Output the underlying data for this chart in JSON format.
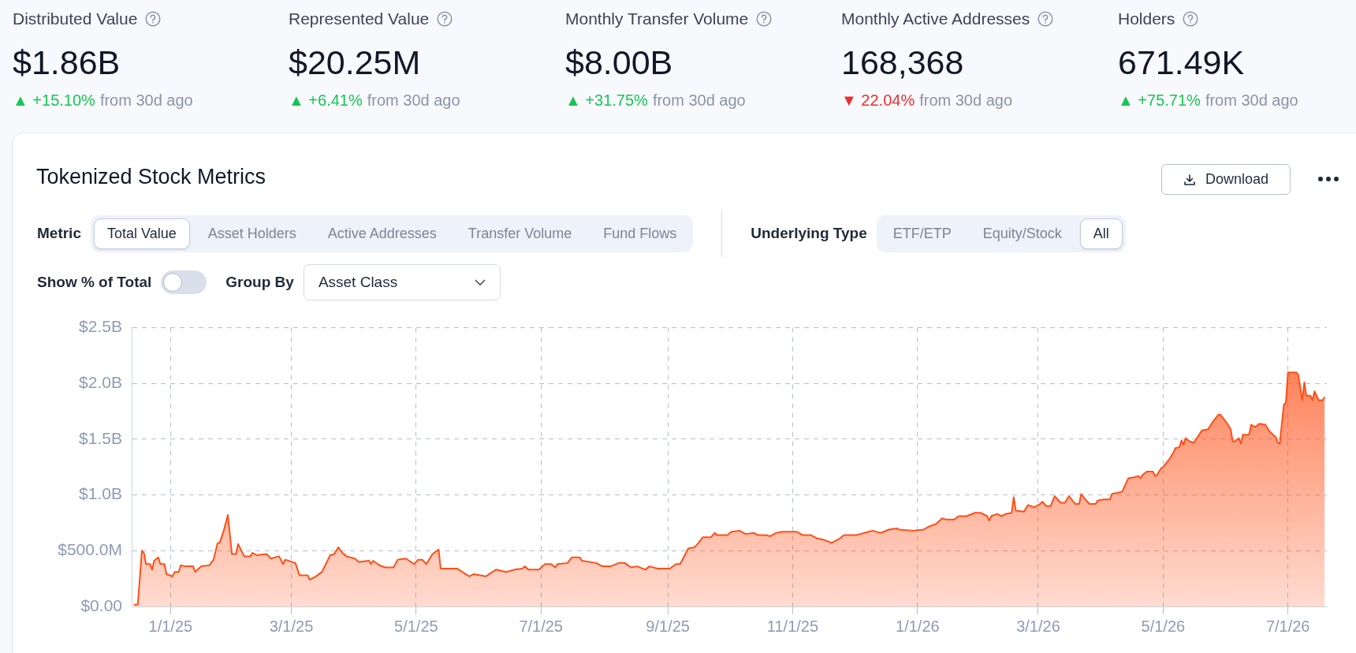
{
  "chart_data": [
    {
      "type": "other",
      "annotations": [
        "Distributed Value",
        "$1.86B",
        "▲ +15.10%",
        "from 30d ago",
        "Represented Value",
        "$20.25M",
        "▲ +6.41%",
        "from 30d ago",
        "Monthly Transfer Volume",
        "$8.00B",
        "▲ +31.75%",
        "from 30d ago",
        "Monthly Active Addresses",
        "168,368",
        "▼ 22.04%",
        "from 30d ago",
        "Holders",
        "671.49K",
        "▲ +75.71%",
        "from 30d ago"
      ],
      "colors": [
        "#16c653",
        "#16c653",
        "#16c653",
        "#f02d2d",
        "#16c653"
      ]
    },
    {
      "type": "area",
      "title": "Tokenized Stock Metrics",
      "annotations": [
        "Download",
        "Metric",
        "Total Value",
        "Asset Holders",
        "Active Addresses",
        "Transfer Volume",
        "Fund Flows",
        "Underlying Type",
        "ETF/ETP",
        "Equity/Stock",
        "All",
        "Show % of Total",
        "Group By",
        "Asset Class"
      ],
      "color": "#ff4f17",
      "grid": true,
      "xlim": [
        "2024-12-13",
        "2026-07-20"
      ],
      "ylim": [
        0,
        2500000000.0
      ],
      "xticks": [
        {
          "value": "2025-01-01",
          "label": "1/1/25"
        },
        {
          "value": "2025-03-01",
          "label": "3/1/25"
        },
        {
          "value": "2025-05-01",
          "label": "5/1/25"
        },
        {
          "value": "2025-07-01",
          "label": "7/1/25"
        },
        {
          "value": "2025-09-01",
          "label": "9/1/25"
        },
        {
          "value": "2025-11-01",
          "label": "11/1/25"
        },
        {
          "value": "2026-01-01",
          "label": "1/1/26"
        },
        {
          "value": "2026-03-01",
          "label": "3/1/26"
        },
        {
          "value": "2026-05-01",
          "label": "5/1/26"
        },
        {
          "value": "2026-07-01",
          "label": "7/1/26"
        }
      ],
      "yticks": [
        {
          "value": 0,
          "label": "$0.00"
        },
        {
          "value": 500000000.0,
          "label": "$500.0M"
        },
        {
          "value": 1000000000.0,
          "label": "$1.0B"
        },
        {
          "value": 1500000000.0,
          "label": "$1.5B"
        },
        {
          "value": 2000000000.0,
          "label": "$2.0B"
        },
        {
          "value": 2500000000.0,
          "label": "$2.5B"
        }
      ],
      "x": [
        "2024-12-14",
        "2024-12-16",
        "2024-12-18",
        "2024-12-19",
        "2024-12-20",
        "2024-12-22",
        "2024-12-23",
        "2024-12-24",
        "2024-12-26",
        "2024-12-27",
        "2024-12-29",
        "2024-12-30",
        "2025-01-02",
        "2025-01-03",
        "2025-01-05",
        "2025-01-06",
        "2025-01-08",
        "2025-01-12",
        "2025-01-13",
        "2025-01-16",
        "2025-01-20",
        "2025-01-22",
        "2025-01-24",
        "2025-01-25",
        "2025-01-27",
        "2025-01-29",
        "2025-01-31",
        "2025-02-02",
        "2025-02-03",
        "2025-02-06",
        "2025-02-09",
        "2025-02-10",
        "2025-02-12",
        "2025-02-17",
        "2025-02-19",
        "2025-02-23",
        "2025-02-25",
        "2025-02-26",
        "2025-03-03",
        "2025-03-05",
        "2025-03-09",
        "2025-03-10",
        "2025-03-13",
        "2025-03-16",
        "2025-03-20",
        "2025-03-22",
        "2025-03-24",
        "2025-03-26",
        "2025-03-28",
        "2025-04-01",
        "2025-04-03",
        "2025-04-08",
        "2025-04-09",
        "2025-04-10",
        "2025-04-13",
        "2025-04-16",
        "2025-04-20",
        "2025-04-22",
        "2025-04-26",
        "2025-04-30",
        "2025-05-02",
        "2025-05-04",
        "2025-05-06",
        "2025-05-09",
        "2025-05-12",
        "2025-05-13",
        "2025-05-17",
        "2025-05-21",
        "2025-05-27",
        "2025-05-29",
        "2025-06-04",
        "2025-06-09",
        "2025-06-14",
        "2025-06-18",
        "2025-06-22",
        "2025-06-23",
        "2025-06-25",
        "2025-06-30",
        "2025-07-03",
        "2025-07-06",
        "2025-07-08",
        "2025-07-09",
        "2025-07-14",
        "2025-07-16",
        "2025-07-20",
        "2025-07-21",
        "2025-07-28",
        "2025-07-31",
        "2025-08-04",
        "2025-08-08",
        "2025-08-11",
        "2025-08-14",
        "2025-08-17",
        "2025-08-21",
        "2025-08-23",
        "2025-08-27",
        "2025-09-02",
        "2025-09-05",
        "2025-09-07",
        "2025-09-11",
        "2025-09-14",
        "2025-09-16",
        "2025-09-18",
        "2025-09-22",
        "2025-09-24",
        "2025-09-25",
        "2025-09-30",
        "2025-10-02",
        "2025-10-06",
        "2025-10-09",
        "2025-10-13",
        "2025-10-15",
        "2025-10-19",
        "2025-10-21",
        "2025-10-24",
        "2025-10-27",
        "2025-11-03",
        "2025-11-06",
        "2025-11-10",
        "2025-11-13",
        "2025-11-16",
        "2025-11-20",
        "2025-11-24",
        "2025-11-26",
        "2025-12-02",
        "2025-12-04",
        "2025-12-06",
        "2025-12-10",
        "2025-12-14",
        "2025-12-18",
        "2025-12-22",
        "2025-12-23",
        "2025-12-30",
        "2026-01-04",
        "2026-01-07",
        "2026-01-10",
        "2026-01-13",
        "2026-01-15",
        "2026-01-19",
        "2026-01-21",
        "2026-01-25",
        "2026-01-29",
        "2026-02-01",
        "2026-02-04",
        "2026-02-05",
        "2026-02-06",
        "2026-02-09",
        "2026-02-11",
        "2026-02-13",
        "2026-02-16",
        "2026-02-17",
        "2026-02-18",
        "2026-02-22",
        "2026-02-24",
        "2026-02-27",
        "2026-03-02",
        "2026-03-03",
        "2026-03-05",
        "2026-03-07",
        "2026-03-09",
        "2026-03-12",
        "2026-03-14",
        "2026-03-16",
        "2026-03-19",
        "2026-03-21",
        "2026-03-22",
        "2026-03-24",
        "2026-03-26",
        "2026-03-29",
        "2026-03-30",
        "2026-04-02",
        "2026-04-05",
        "2026-04-06",
        "2026-04-09",
        "2026-04-11",
        "2026-04-14",
        "2026-04-17",
        "2026-04-19",
        "2026-04-20",
        "2026-04-21",
        "2026-04-23",
        "2026-04-26",
        "2026-04-27",
        "2026-04-28",
        "2026-04-30",
        "2026-05-01",
        "2026-05-04",
        "2026-05-06",
        "2026-05-07",
        "2026-05-09",
        "2026-05-10",
        "2026-05-11",
        "2026-05-12",
        "2026-05-14",
        "2026-05-16",
        "2026-05-20",
        "2026-05-23",
        "2026-05-25",
        "2026-05-28",
        "2026-05-29",
        "2026-06-01",
        "2026-06-03",
        "2026-06-04",
        "2026-06-05",
        "2026-06-07",
        "2026-06-08",
        "2026-06-09",
        "2026-06-12",
        "2026-06-13",
        "2026-06-15",
        "2026-06-17",
        "2026-06-20",
        "2026-06-22",
        "2026-06-25",
        "2026-06-26",
        "2026-06-27",
        "2026-06-29",
        "2026-06-30",
        "2026-07-01",
        "2026-07-05",
        "2026-07-06",
        "2026-07-08",
        "2026-07-09",
        "2026-07-10",
        "2026-07-12",
        "2026-07-13",
        "2026-07-14",
        "2026-07-16",
        "2026-07-18",
        "2026-07-19"
      ],
      "values": [
        16000000.0,
        16000000.0,
        500000000.0,
        480000000.0,
        380000000.0,
        380000000.0,
        330000000.0,
        410000000.0,
        440000000.0,
        380000000.0,
        380000000.0,
        290000000.0,
        270000000.0,
        310000000.0,
        310000000.0,
        370000000.0,
        360000000.0,
        360000000.0,
        310000000.0,
        360000000.0,
        370000000.0,
        420000000.0,
        570000000.0,
        570000000.0,
        680000000.0,
        820000000.0,
        470000000.0,
        470000000.0,
        560000000.0,
        450000000.0,
        450000000.0,
        480000000.0,
        460000000.0,
        470000000.0,
        430000000.0,
        450000000.0,
        380000000.0,
        420000000.0,
        390000000.0,
        280000000.0,
        280000000.0,
        240000000.0,
        270000000.0,
        310000000.0,
        460000000.0,
        470000000.0,
        530000000.0,
        480000000.0,
        450000000.0,
        430000000.0,
        400000000.0,
        410000000.0,
        380000000.0,
        410000000.0,
        370000000.0,
        350000000.0,
        350000000.0,
        420000000.0,
        430000000.0,
        380000000.0,
        420000000.0,
        420000000.0,
        380000000.0,
        470000000.0,
        510000000.0,
        340000000.0,
        340000000.0,
        340000000.0,
        270000000.0,
        290000000.0,
        270000000.0,
        330000000.0,
        310000000.0,
        330000000.0,
        340000000.0,
        360000000.0,
        330000000.0,
        330000000.0,
        380000000.0,
        380000000.0,
        350000000.0,
        380000000.0,
        390000000.0,
        440000000.0,
        440000000.0,
        410000000.0,
        390000000.0,
        360000000.0,
        360000000.0,
        390000000.0,
        390000000.0,
        350000000.0,
        360000000.0,
        330000000.0,
        360000000.0,
        340000000.0,
        340000000.0,
        380000000.0,
        380000000.0,
        520000000.0,
        530000000.0,
        570000000.0,
        620000000.0,
        620000000.0,
        660000000.0,
        640000000.0,
        640000000.0,
        670000000.0,
        680000000.0,
        650000000.0,
        660000000.0,
        640000000.0,
        640000000.0,
        630000000.0,
        660000000.0,
        670000000.0,
        670000000.0,
        640000000.0,
        640000000.0,
        610000000.0,
        600000000.0,
        570000000.0,
        610000000.0,
        640000000.0,
        640000000.0,
        650000000.0,
        660000000.0,
        680000000.0,
        660000000.0,
        690000000.0,
        700000000.0,
        690000000.0,
        680000000.0,
        690000000.0,
        720000000.0,
        740000000.0,
        790000000.0,
        780000000.0,
        780000000.0,
        810000000.0,
        810000000.0,
        840000000.0,
        840000000.0,
        810000000.0,
        770000000.0,
        810000000.0,
        830000000.0,
        810000000.0,
        830000000.0,
        840000000.0,
        980000000.0,
        860000000.0,
        850000000.0,
        910000000.0,
        890000000.0,
        920000000.0,
        940000000.0,
        900000000.0,
        900000000.0,
        990000000.0,
        930000000.0,
        930000000.0,
        990000000.0,
        920000000.0,
        920000000.0,
        1010000000.0,
        960000000.0,
        920000000.0,
        920000000.0,
        950000000.0,
        960000000.0,
        960000000.0,
        1010000000.0,
        1020000000.0,
        1030000000.0,
        1150000000.0,
        1160000000.0,
        1170000000.0,
        1150000000.0,
        1180000000.0,
        1210000000.0,
        1210000000.0,
        1170000000.0,
        1180000000.0,
        1240000000.0,
        1250000000.0,
        1320000000.0,
        1380000000.0,
        1420000000.0,
        1430000000.0,
        1490000000.0,
        1450000000.0,
        1510000000.0,
        1480000000.0,
        1470000000.0,
        1580000000.0,
        1590000000.0,
        1650000000.0,
        1720000000.0,
        1720000000.0,
        1650000000.0,
        1590000000.0,
        1480000000.0,
        1480000000.0,
        1510000000.0,
        1460000000.0,
        1540000000.0,
        1540000000.0,
        1630000000.0,
        1610000000.0,
        1640000000.0,
        1630000000.0,
        1570000000.0,
        1520000000.0,
        1470000000.0,
        1460000000.0,
        1810000000.0,
        1830000000.0,
        2100000000.0,
        2100000000.0,
        2080000000.0,
        1850000000.0,
        2010000000.0,
        1890000000.0,
        1890000000.0,
        1850000000.0,
        1930000000.0,
        1850000000.0,
        1850000000.0,
        1880000000.0
      ]
    }
  ]
}
